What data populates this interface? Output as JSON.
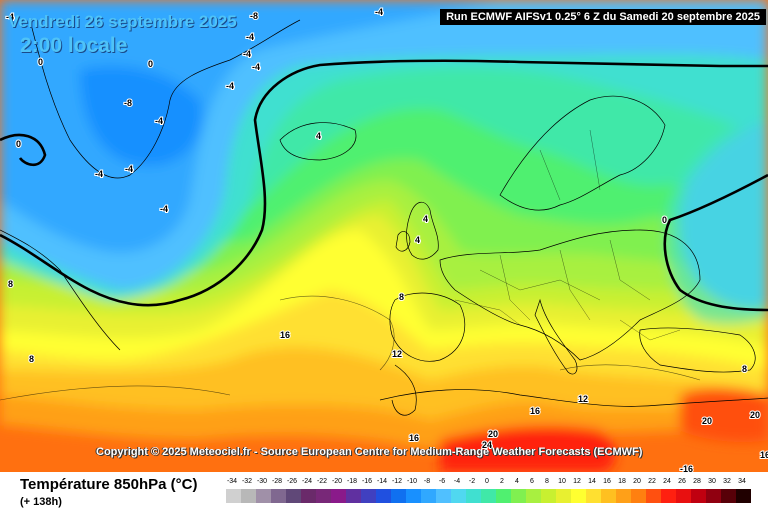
{
  "header": {
    "date_label": "Vendredi 26 septembre 2025",
    "time_label": "2:00 locale",
    "run_label": "Run ECMWF AIFSv1 0.25° 6 Z du Samedi 20 septembre 2025"
  },
  "map": {
    "projection_region": "North Atlantic and Europe",
    "copyright": "Copyright © 2025 Meteociel.fr - Source European Centre for Medium-Range Weather Forecasts (ECMWF)",
    "contour_labels": [
      {
        "id": "l1",
        "text": "-4"
      },
      {
        "id": "l2",
        "text": "-8"
      },
      {
        "id": "l3",
        "text": "-4"
      },
      {
        "id": "l4",
        "text": "0"
      },
      {
        "id": "l5",
        "text": "-4"
      },
      {
        "id": "l6",
        "text": "-4"
      },
      {
        "id": "l7",
        "text": "-4"
      },
      {
        "id": "l8",
        "text": "0"
      },
      {
        "id": "l9",
        "text": "-4"
      },
      {
        "id": "l10",
        "text": "-8"
      },
      {
        "id": "l11",
        "text": "-4"
      },
      {
        "id": "l12",
        "text": "0"
      },
      {
        "id": "l13",
        "text": "-4"
      },
      {
        "id": "l14",
        "text": "-4"
      },
      {
        "id": "l15",
        "text": "4"
      },
      {
        "id": "l16",
        "text": "-4"
      },
      {
        "id": "l17",
        "text": "4"
      },
      {
        "id": "l18",
        "text": "4"
      },
      {
        "id": "l19",
        "text": "0"
      },
      {
        "id": "l20",
        "text": "8"
      },
      {
        "id": "l21",
        "text": "8"
      },
      {
        "id": "l22",
        "text": "16"
      },
      {
        "id": "l23",
        "text": "8"
      },
      {
        "id": "l24",
        "text": "12"
      },
      {
        "id": "l25",
        "text": "8"
      },
      {
        "id": "l26",
        "text": "16"
      },
      {
        "id": "l27",
        "text": "20"
      },
      {
        "id": "l28",
        "text": "24"
      },
      {
        "id": "l29",
        "text": "16"
      },
      {
        "id": "l30",
        "text": "12"
      },
      {
        "id": "l31",
        "text": "20"
      },
      {
        "id": "l32",
        "text": "20"
      },
      {
        "id": "l33",
        "text": "-16"
      },
      {
        "id": "l34",
        "text": "16"
      }
    ]
  },
  "legend": {
    "parameter_label": "Température 850hPa (°C)",
    "lead_time_label": "(+ 138h)",
    "scale_values": [
      "-34",
      "-32",
      "-30",
      "-28",
      "-26",
      "-24",
      "-22",
      "-20",
      "-18",
      "-16",
      "-14",
      "-12",
      "-10",
      "-8",
      "-6",
      "-4",
      "-2",
      "0",
      "2",
      "4",
      "6",
      "8",
      "10",
      "12",
      "14",
      "16",
      "18",
      "20",
      "22",
      "24",
      "26",
      "28",
      "30",
      "32",
      "34"
    ],
    "scale_colors": [
      "#d0d0d0",
      "#b8b8b8",
      "#a090a8",
      "#806890",
      "#604878",
      "#6a2a6a",
      "#782878",
      "#8a1a8a",
      "#6030a0",
      "#4040c0",
      "#2050e0",
      "#1070f0",
      "#1890ff",
      "#30a8ff",
      "#50c0ff",
      "#50d8f0",
      "#40e0d0",
      "#40e8a8",
      "#50f070",
      "#80f050",
      "#a8f040",
      "#c8f030",
      "#e8f030",
      "#ffff30",
      "#ffe030",
      "#ffc020",
      "#ffa018",
      "#ff8010",
      "#ff5010",
      "#ff2010",
      "#e81010",
      "#c00010",
      "#900010",
      "#580008",
      "#200000"
    ]
  }
}
